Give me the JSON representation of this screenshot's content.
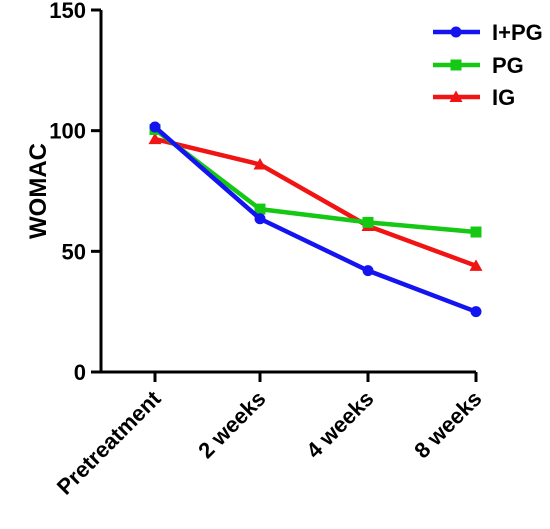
{
  "chart_data": {
    "type": "line",
    "title": "",
    "xlabel": "",
    "ylabel": "WOMAC",
    "ylim": [
      0,
      150
    ],
    "yticks": [
      0,
      50,
      100,
      150
    ],
    "grid": false,
    "legend_position": "top-right",
    "categories": [
      "Pretreatment",
      "2 weeks",
      "4 weeks",
      "8 weeks"
    ],
    "series": [
      {
        "name": "I+PG",
        "values": [
          101.5,
          63.5,
          42,
          25
        ],
        "color": "#1414f0",
        "marker": "circle"
      },
      {
        "name": "PG",
        "values": [
          100.5,
          67.5,
          62,
          58
        ],
        "color": "#14c814",
        "marker": "square"
      },
      {
        "name": "IG",
        "values": [
          96.5,
          86,
          60.5,
          44
        ],
        "color": "#f01414",
        "marker": "triangle"
      }
    ]
  }
}
